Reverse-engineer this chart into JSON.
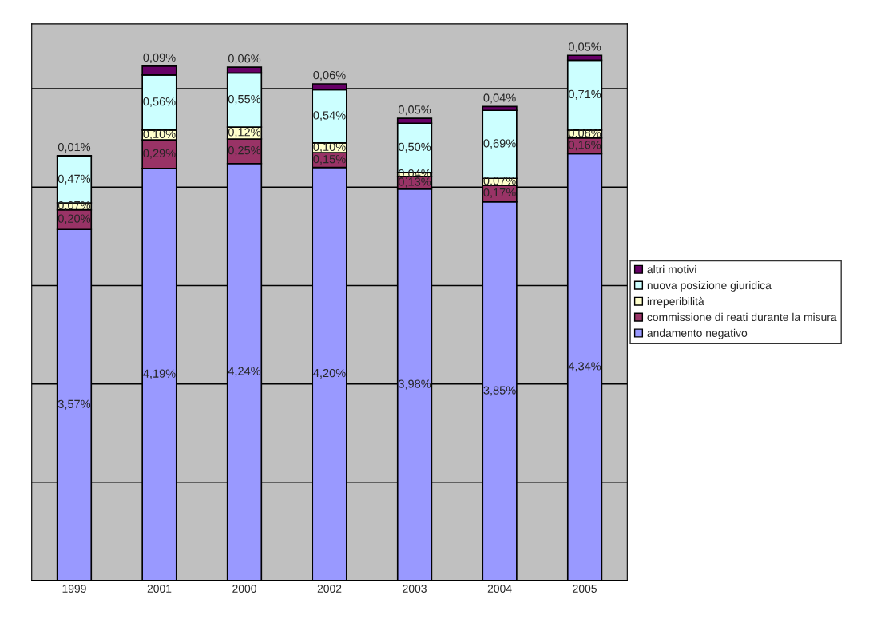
{
  "chart_data": {
    "type": "bar",
    "stacked": true,
    "categories": [
      "1999",
      "2001",
      "2000",
      "2002",
      "2003",
      "2004",
      "2005"
    ],
    "series": [
      {
        "name": "andamento negativo",
        "color": "#9999ff",
        "values": [
          3.57,
          4.19,
          4.24,
          4.2,
          3.98,
          3.85,
          4.34
        ],
        "value_labels": [
          "3,57%",
          "4,19%",
          "4,24%",
          "4,20%",
          "3,98%",
          "3,85%",
          "4,34%"
        ]
      },
      {
        "name": "commissione di reati durante la misura",
        "color": "#993366",
        "values": [
          0.2,
          0.29,
          0.25,
          0.15,
          0.13,
          0.17,
          0.16
        ],
        "value_labels": [
          "0,20%",
          "0,29%",
          "0,25%",
          "0,15%",
          "0,13%",
          "0,17%",
          "0,16%"
        ]
      },
      {
        "name": "irreperibilità",
        "color": "#ffffcc",
        "values": [
          0.07,
          0.1,
          0.12,
          0.1,
          0.04,
          0.07,
          0.08
        ],
        "value_labels": [
          "0,07%",
          "0,10%",
          "0,12%",
          "0,10%",
          "0,04%",
          "0,07%",
          "0,08%"
        ]
      },
      {
        "name": "nuova posizione giuridica",
        "color": "#ccffff",
        "values": [
          0.47,
          0.56,
          0.55,
          0.54,
          0.5,
          0.69,
          0.71
        ],
        "value_labels": [
          "0,47%",
          "0,56%",
          "0,55%",
          "0,54%",
          "0,50%",
          "0,69%",
          "0,71%"
        ]
      },
      {
        "name": "altri motivi",
        "color": "#660066",
        "values": [
          0.01,
          0.09,
          0.06,
          0.06,
          0.05,
          0.04,
          0.05
        ],
        "value_labels": [
          "0,01%",
          "0,09%",
          "0,06%",
          "0,06%",
          "0,05%",
          "0,04%",
          "0,05%"
        ]
      }
    ],
    "grid": "y",
    "legend": "right",
    "tick_labels": "x"
  }
}
